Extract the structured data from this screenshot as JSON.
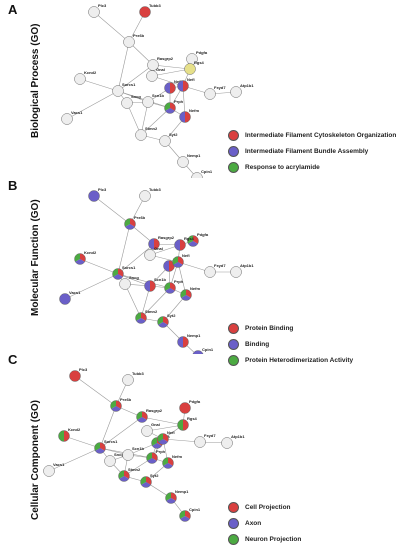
{
  "colors": {
    "red": "#d9403f",
    "blue": "#6a5fc8",
    "green": "#4caa42",
    "white": "#eeeeee",
    "yellow": "#e6e08a"
  },
  "nodes": [
    "Plc3",
    "Tubb3",
    "Prx6b",
    "Pdgfa",
    "Rasgrp2",
    "Gnal",
    "Rgs4",
    "Kcnd2",
    "Nefk",
    "Nefl",
    "Fxyd7",
    "Atp1b1",
    "Sorcs1",
    "Sncg",
    "Scn1b",
    "Prph",
    "Nefm",
    "Vacs1",
    "Stmn2",
    "Syt2",
    "Nemp1",
    "Cpin1"
  ],
  "edges": [
    [
      0,
      2
    ],
    [
      1,
      2
    ],
    [
      2,
      12
    ],
    [
      2,
      4
    ],
    [
      3,
      6
    ],
    [
      4,
      12
    ],
    [
      4,
      6
    ],
    [
      5,
      6
    ],
    [
      5,
      9
    ],
    [
      6,
      9
    ],
    [
      7,
      12
    ],
    [
      8,
      9
    ],
    [
      8,
      15
    ],
    [
      8,
      14
    ],
    [
      9,
      15
    ],
    [
      9,
      10
    ],
    [
      10,
      11
    ],
    [
      9,
      16
    ],
    [
      12,
      13
    ],
    [
      12,
      14
    ],
    [
      12,
      15
    ],
    [
      12,
      17
    ],
    [
      13,
      14
    ],
    [
      14,
      15
    ],
    [
      15,
      16
    ],
    [
      15,
      18
    ],
    [
      18,
      19
    ],
    [
      19,
      16
    ],
    [
      19,
      20
    ],
    [
      20,
      21
    ],
    [
      14,
      18
    ],
    [
      13,
      18
    ]
  ],
  "panels": [
    {
      "letter": "A",
      "title": "Biological Process (GO)",
      "legend": [
        {
          "label": "Intermediate Filament Cytoskeleton Organization",
          "color": "red"
        },
        {
          "label": "Intermediate Filament Bundle Assembly",
          "color": "blue"
        },
        {
          "label": "Response to acrylamide",
          "color": "green"
        }
      ],
      "node_colors": [
        [
          "white"
        ],
        [
          "red"
        ],
        [
          "white"
        ],
        [
          "white"
        ],
        [
          "white"
        ],
        [
          "white"
        ],
        [
          "yellow"
        ],
        [
          "white"
        ],
        [
          "red",
          "blue"
        ],
        [
          "red",
          "blue"
        ],
        [
          "white"
        ],
        [
          "white"
        ],
        [
          "white"
        ],
        [
          "white"
        ],
        [
          "white"
        ],
        [
          "red",
          "blue",
          "green"
        ],
        [
          "red",
          "blue"
        ],
        [
          "white"
        ],
        [
          "white"
        ],
        [
          "white"
        ],
        [
          "white"
        ],
        [
          "white"
        ]
      ]
    },
    {
      "letter": "B",
      "title": "Molecular Function (GO)",
      "legend": [
        {
          "label": "Protein Binding",
          "color": "red"
        },
        {
          "label": "Binding",
          "color": "blue"
        },
        {
          "label": "Protein Heterodimerization Activity",
          "color": "green"
        }
      ],
      "node_colors": [
        [
          "blue"
        ],
        [
          "white"
        ],
        [
          "red",
          "blue",
          "green"
        ],
        [
          "red",
          "blue",
          "green"
        ],
        [
          "red",
          "blue"
        ],
        [
          "white"
        ],
        [
          "red",
          "blue"
        ],
        [
          "red",
          "blue",
          "green"
        ],
        [
          "red",
          "blue"
        ],
        [
          "red",
          "blue",
          "green"
        ],
        [
          "white"
        ],
        [
          "white"
        ],
        [
          "red",
          "blue",
          "green"
        ],
        [
          "white"
        ],
        [
          "red",
          "blue"
        ],
        [
          "red",
          "blue",
          "green"
        ],
        [
          "red",
          "blue",
          "green"
        ],
        [
          "blue"
        ],
        [
          "red",
          "blue",
          "green"
        ],
        [
          "red",
          "blue",
          "green"
        ],
        [
          "red",
          "blue"
        ],
        [
          "blue"
        ]
      ]
    },
    {
      "letter": "C",
      "title": "Cellular Component (GO)",
      "legend": [
        {
          "label": "Cell Projection",
          "color": "red"
        },
        {
          "label": "Axon",
          "color": "blue"
        },
        {
          "label": "Neuron Projection",
          "color": "green"
        }
      ],
      "node_colors": [
        [
          "red"
        ],
        [
          "white"
        ],
        [
          "red",
          "blue",
          "green"
        ],
        [
          "red"
        ],
        [
          "red",
          "blue",
          "green"
        ],
        [
          "white"
        ],
        [
          "red",
          "green"
        ],
        [
          "red",
          "green"
        ],
        [
          "red",
          "blue",
          "green"
        ],
        [
          "red",
          "blue",
          "green"
        ],
        [
          "white"
        ],
        [
          "white"
        ],
        [
          "red",
          "blue",
          "green"
        ],
        [
          "white"
        ],
        [
          "white"
        ],
        [
          "red",
          "blue",
          "green"
        ],
        [
          "red",
          "blue",
          "green"
        ],
        [
          "white"
        ],
        [
          "red",
          "blue",
          "green"
        ],
        [
          "red",
          "blue",
          "green"
        ],
        [
          "red",
          "blue",
          "green"
        ],
        [
          "red",
          "blue",
          "green"
        ]
      ]
    }
  ]
}
